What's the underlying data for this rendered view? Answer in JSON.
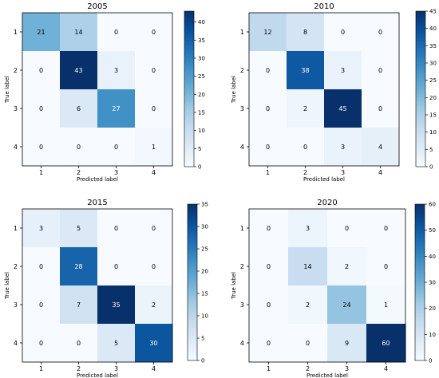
{
  "chart_data": [
    {
      "type": "heatmap",
      "title": "2005",
      "xlabel": "Predicted label",
      "ylabel": "True label",
      "x_ticks": [
        "1",
        "2",
        "3",
        "4"
      ],
      "y_ticks": [
        "1",
        "2",
        "3",
        "4"
      ],
      "matrix": [
        [
          21,
          14,
          0,
          0
        ],
        [
          0,
          43,
          3,
          0
        ],
        [
          0,
          6,
          27,
          0
        ],
        [
          0,
          0,
          0,
          1
        ]
      ],
      "colorbar_max": 43,
      "colorbar_ticks": [
        "0",
        "5",
        "10",
        "15",
        "20",
        "25",
        "30",
        "35",
        "40"
      ],
      "colormap": "Blues"
    },
    {
      "type": "heatmap",
      "title": "2010",
      "xlabel": "Predicted label",
      "ylabel": "True label",
      "x_ticks": [
        "1",
        "2",
        "3",
        "4"
      ],
      "y_ticks": [
        "1",
        "2",
        "3",
        "4"
      ],
      "matrix": [
        [
          12,
          8,
          0,
          0
        ],
        [
          0,
          38,
          3,
          0
        ],
        [
          0,
          2,
          45,
          0
        ],
        [
          0,
          0,
          3,
          4
        ]
      ],
      "colorbar_max": 45,
      "colorbar_ticks": [
        "0",
        "5",
        "10",
        "15",
        "20",
        "25",
        "30",
        "35",
        "40",
        "45"
      ],
      "colormap": "Blues"
    },
    {
      "type": "heatmap",
      "title": "2015",
      "xlabel": "Predicted label",
      "ylabel": "True label",
      "x_ticks": [
        "1",
        "2",
        "3",
        "4"
      ],
      "y_ticks": [
        "1",
        "2",
        "3",
        "4"
      ],
      "matrix": [
        [
          3,
          5,
          0,
          0
        ],
        [
          0,
          28,
          0,
          0
        ],
        [
          0,
          7,
          35,
          2
        ],
        [
          0,
          0,
          5,
          30
        ]
      ],
      "colorbar_max": 35,
      "colorbar_ticks": [
        "0",
        "5",
        "10",
        "15",
        "20",
        "25",
        "30",
        "35"
      ],
      "colormap": "Blues"
    },
    {
      "type": "heatmap",
      "title": "2020",
      "xlabel": "Predicted label",
      "ylabel": "True label",
      "x_ticks": [
        "1",
        "2",
        "3",
        "4"
      ],
      "y_ticks": [
        "1",
        "2",
        "3",
        "4"
      ],
      "matrix": [
        [
          0,
          3,
          0,
          0
        ],
        [
          0,
          14,
          2,
          0
        ],
        [
          0,
          2,
          24,
          1
        ],
        [
          0,
          0,
          9,
          60
        ]
      ],
      "colorbar_max": 60,
      "colorbar_ticks": [
        "0",
        "10",
        "20",
        "30",
        "40",
        "50",
        "60"
      ],
      "colormap": "Blues"
    }
  ]
}
